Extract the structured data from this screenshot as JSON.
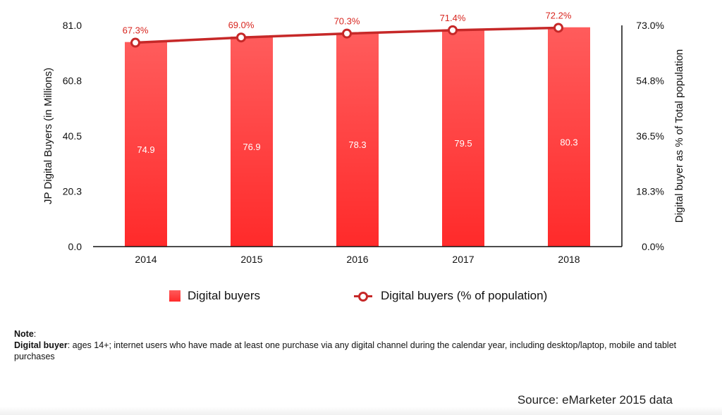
{
  "chart_data": {
    "type": "bar",
    "categories": [
      "2014",
      "2015",
      "2016",
      "2017",
      "2018"
    ],
    "series": [
      {
        "name": "Digital buyers",
        "type": "bar",
        "axis": "left",
        "values": [
          74.9,
          76.9,
          78.3,
          79.5,
          80.3
        ],
        "labels": [
          "74.9",
          "76.9",
          "78.3",
          "79.5",
          "80.3"
        ]
      },
      {
        "name": "Digital buyers (% of population)",
        "type": "line",
        "axis": "right",
        "values": [
          67.3,
          69.0,
          70.3,
          71.4,
          72.2
        ],
        "labels": [
          "67.3%",
          "69.0%",
          "70.3%",
          "71.4%",
          "72.2%"
        ]
      }
    ],
    "ylabel": "JP Digital Buyers (in Millions)",
    "y2label": "Digital buyer as % of Total population",
    "ylim": [
      0,
      81
    ],
    "y2lim": [
      0,
      73
    ],
    "yticks": [
      "0.0",
      "20.3",
      "40.5",
      "60.8",
      "81.0"
    ],
    "y2ticks": [
      "0.0%",
      "18.3%",
      "36.5%",
      "54.8%",
      "73.0%"
    ],
    "grid": false,
    "legend": "bottom-center"
  },
  "colors": {
    "bar_top": "#ff5c5c",
    "bar_bottom": "#ff2a2a",
    "line": "#c62828",
    "label_line": "#d8261f"
  },
  "note": {
    "title": "Note",
    "term": "Digital buyer",
    "text": ": ages 14+; internet users who have made at least one purchase via any digital channel during the calendar year, including desktop/laptop, mobile and tablet purchases"
  },
  "source": "Source: eMarketer 2015 data"
}
